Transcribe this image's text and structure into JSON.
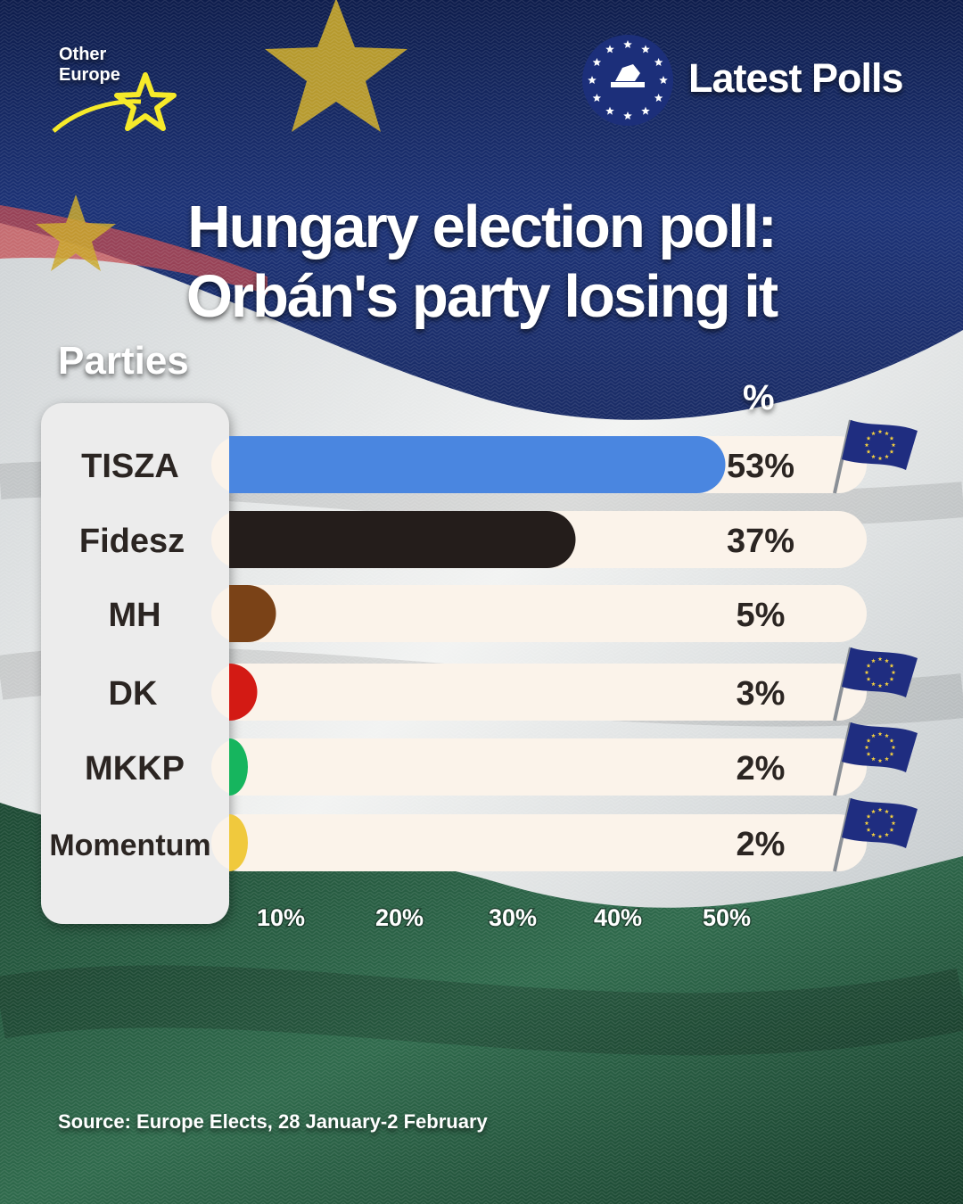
{
  "brand": {
    "name": "Other Europe",
    "logo_icon": "yellow-star-swoosh"
  },
  "badge": {
    "label": "Latest Polls",
    "icon": "ballot-box-eu-stars-icon"
  },
  "headline": {
    "line1": "Hungary election poll:",
    "line2": "Orbán's party losing it"
  },
  "colors": {
    "bar_track": "#fbf3ea",
    "label_panel": "#ececec",
    "text_dark": "#2b2522",
    "flag_blue": "#1f2d80",
    "flag_star": "#f4d03f"
  },
  "chart_data": {
    "type": "bar",
    "orientation": "horizontal",
    "category_axis_label": "Parties",
    "value_axis_label": "%",
    "categories": [
      "TISZA",
      "Fidesz",
      "MH",
      "DK",
      "MKKP",
      "Momentum"
    ],
    "values": [
      53,
      37,
      5,
      3,
      2,
      2
    ],
    "value_labels": [
      "53%",
      "37%",
      "5%",
      "3%",
      "2%",
      "2%"
    ],
    "bar_colors": [
      "#4a86e0",
      "#241d1b",
      "#7a4217",
      "#d31a14",
      "#16b55e",
      "#f0c93d"
    ],
    "eu_flag_marker": [
      true,
      false,
      false,
      true,
      true,
      true
    ],
    "x_ticks": [
      10,
      20,
      30,
      40,
      50
    ],
    "x_tick_labels": [
      "10%",
      "20%",
      "30%",
      "40%",
      "50%"
    ],
    "xlim": [
      0,
      50
    ],
    "grid": false
  },
  "source": "Source: Europe Elects, 28 January-2 February"
}
